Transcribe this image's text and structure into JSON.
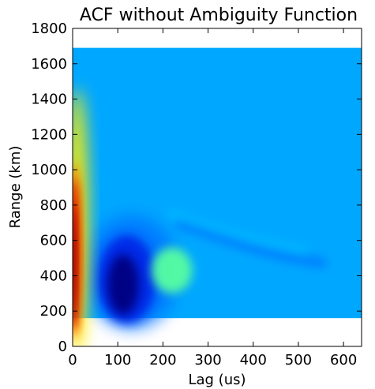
{
  "chart_data": {
    "type": "heatmap",
    "title": "ACF without Ambiguity Function",
    "xlabel": "Lag (us)",
    "ylabel": "Range (km)",
    "xlim": [
      0,
      640
    ],
    "ylim": [
      0,
      1800
    ],
    "x_ticks": [
      0,
      100,
      200,
      300,
      400,
      500,
      600
    ],
    "y_ticks": [
      0,
      200,
      400,
      600,
      800,
      1000,
      1200,
      1400,
      1600,
      1800
    ],
    "data_extent": {
      "x": [
        0,
        640
      ],
      "y": [
        160,
        1690
      ]
    },
    "colormap": "jet",
    "background_color": "#00a7ff",
    "features": [
      {
        "name": "peak-at-zero-lag",
        "lag_us": [
          0,
          25
        ],
        "range_km": [
          250,
          1000
        ],
        "level": "high"
      },
      {
        "name": "negative-trough",
        "lag_us": [
          60,
          200
        ],
        "range_km": [
          180,
          700
        ],
        "level": "low"
      },
      {
        "name": "secondary-positive-lobe",
        "lag_us": [
          180,
          260
        ],
        "range_km": [
          300,
          550
        ],
        "level": "mid-high"
      }
    ]
  }
}
